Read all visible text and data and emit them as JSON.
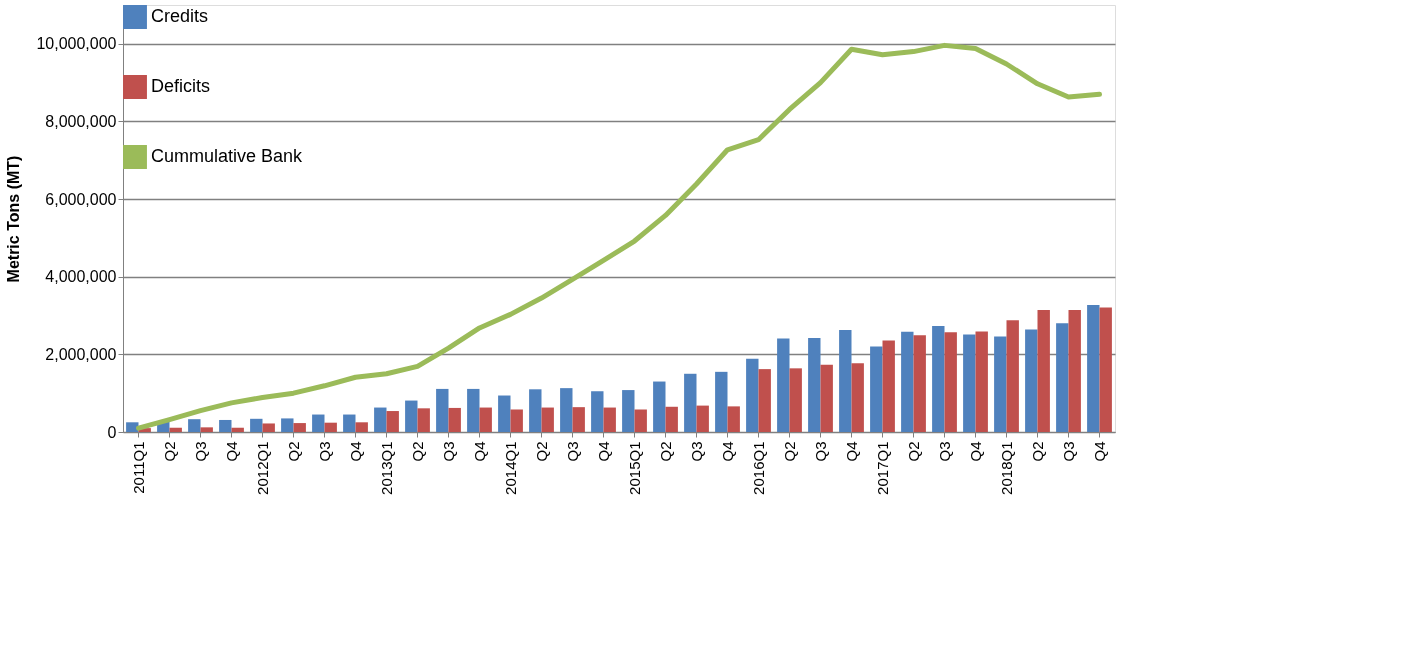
{
  "chart_data": {
    "type": "bar",
    "ylabel": "Metric Tons (MT)",
    "categories": [
      "2011Q1",
      "Q2",
      "Q3",
      "Q4",
      "2012Q1",
      "Q2",
      "Q3",
      "Q4",
      "2013Q1",
      "Q2",
      "Q3",
      "Q4",
      "2014Q1",
      "Q2",
      "Q3",
      "Q4",
      "2015Q1",
      "Q2",
      "Q3",
      "Q4",
      "2016Q1",
      "Q2",
      "Q3",
      "Q4",
      "2017Q1",
      "Q2",
      "Q3",
      "Q4",
      "2018Q1",
      "Q2",
      "Q3",
      "Q4"
    ],
    "series": [
      {
        "name": "Credits",
        "color": "#4f81bd",
        "values": [
          250000,
          260000,
          330000,
          310000,
          340000,
          350000,
          450000,
          450000,
          630000,
          810000,
          1110000,
          1110000,
          940000,
          1100000,
          1130000,
          1050000,
          1080000,
          1300000,
          1500000,
          1550000,
          1890000,
          2410000,
          2420000,
          2630000,
          2200000,
          2580000,
          2730000,
          2510000,
          2460000,
          2640000,
          2800000,
          3270000
        ]
      },
      {
        "name": "Deficits",
        "color": "#c0504d",
        "values": [
          100000,
          110000,
          120000,
          110000,
          220000,
          230000,
          240000,
          250000,
          540000,
          610000,
          620000,
          630000,
          580000,
          630000,
          640000,
          630000,
          580000,
          650000,
          680000,
          660000,
          1620000,
          1640000,
          1730000,
          1770000,
          2360000,
          2490000,
          2570000,
          2590000,
          2880000,
          3140000,
          3140000,
          3210000
        ]
      },
      {
        "name": "Cummulative Bank",
        "color": "#9bbb59",
        "type": "line",
        "values": [
          100000,
          320000,
          550000,
          750000,
          890000,
          1000000,
          1190000,
          1410000,
          1500000,
          1690000,
          2160000,
          2680000,
          3030000,
          3450000,
          3930000,
          4420000,
          4920000,
          5580000,
          6390000,
          7270000,
          7530000,
          8310000,
          9000000,
          9860000,
          9720000,
          9800000,
          9960000,
          9880000,
          9480000,
          8970000,
          8630000,
          8700000
        ]
      }
    ],
    "ylim": [
      0,
      11000000
    ],
    "yticks": [
      0,
      {
        "value": 2000000,
        "label": "2,000,000"
      },
      {
        "value": 4000000,
        "label": "4,000,000"
      },
      {
        "value": 6000000,
        "label": "6,000,000"
      },
      {
        "value": 8000000,
        "label": "8,000,000"
      },
      {
        "value": 10000000,
        "label": "10,000,000"
      }
    ],
    "grid": "y",
    "legend": "top left"
  }
}
